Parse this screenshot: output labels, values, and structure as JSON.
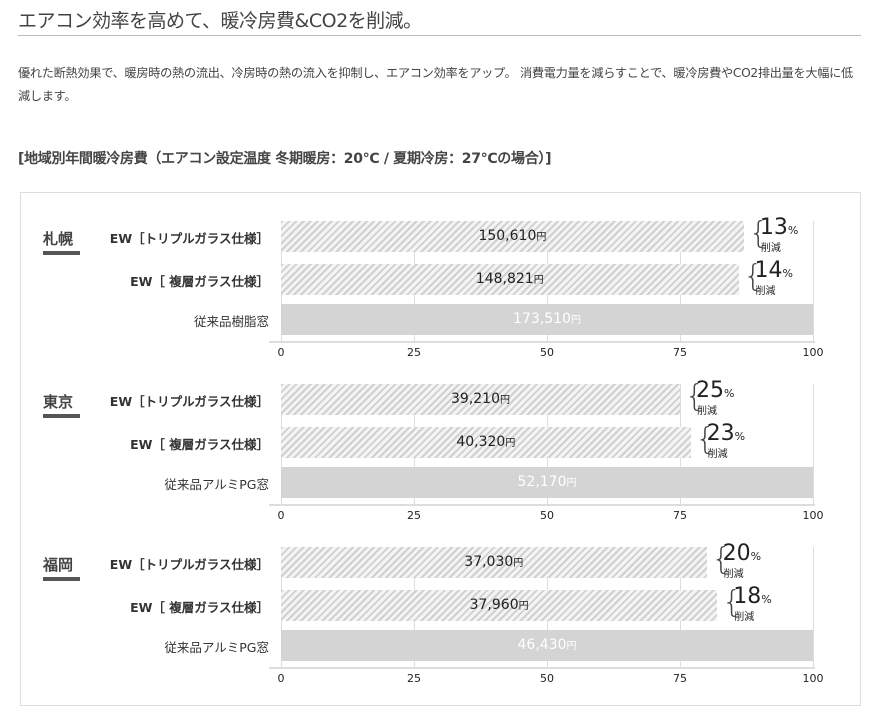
{
  "header": {
    "title": "エアコン効率を高めて、暖冷房費&CO2を削減。"
  },
  "description": "優れた断熱効果で、暖房時の熱の流出、冷房時の熱の流入を抑制し、エアコン効率をアップ。 消費電力量を減らすことで、暖冷房費やCO2排出量を大幅に低減します。",
  "chart_title": "[地域別年間暖冷房費（エアコン設定温度 冬期暖房：20℃ / 夏期冷房：27℃の場合）]",
  "reduction_suffix": "削減",
  "currency": "円",
  "chart_data": [
    {
      "type": "bar",
      "region": "札幌",
      "xlim": [
        0,
        100
      ],
      "ticks": [
        "0",
        "25",
        "50",
        "75",
        "100"
      ],
      "categories": [
        "EW［トリプルガラス仕様］",
        "EW［ 複層ガラス仕様］",
        "従来品樹脂窓"
      ],
      "values": [
        87,
        86,
        100
      ],
      "labels": [
        "150,610",
        "148,821",
        "173,510"
      ],
      "reductions": [
        "13",
        "14",
        null
      ]
    },
    {
      "type": "bar",
      "region": "東京",
      "xlim": [
        0,
        100
      ],
      "ticks": [
        "0",
        "25",
        "50",
        "75",
        "100"
      ],
      "categories": [
        "EW［トリプルガラス仕様］",
        "EW［ 複層ガラス仕様］",
        "従来品アルミPG窓"
      ],
      "values": [
        75,
        77,
        100
      ],
      "labels": [
        "39,210",
        "40,320",
        "52,170"
      ],
      "reductions": [
        "25",
        "23",
        null
      ]
    },
    {
      "type": "bar",
      "region": "福岡",
      "xlim": [
        0,
        100
      ],
      "ticks": [
        "0",
        "25",
        "50",
        "75",
        "100"
      ],
      "categories": [
        "EW［トリプルガラス仕様］",
        "EW［ 複層ガラス仕様］",
        "従来品アルミPG窓"
      ],
      "values": [
        80,
        82,
        100
      ],
      "labels": [
        "37,030",
        "37,960",
        "46,430"
      ],
      "reductions": [
        "20",
        "18",
        null
      ]
    }
  ],
  "colors": {
    "hatch": "#d0d0d0",
    "baseline_bar": "#d4d4d4",
    "text": "#333333"
  }
}
